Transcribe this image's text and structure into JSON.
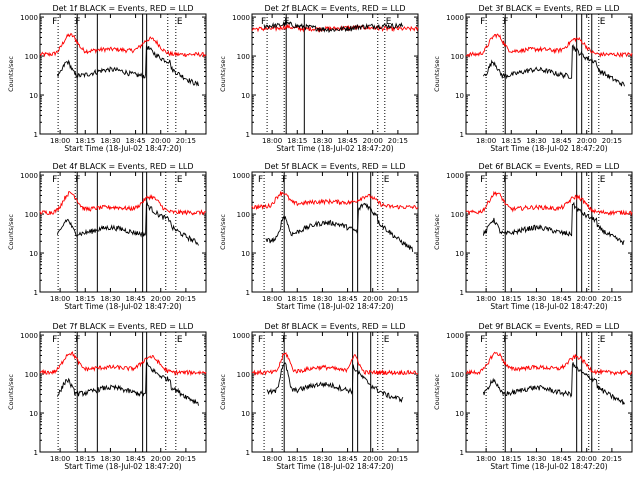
{
  "chart_data": {
    "type": "line",
    "ylabel": "Counts/sec",
    "xlabel": "Start Time (18-Jul-02 18:47:20)",
    "y_ticks": [
      "1",
      "10",
      "100",
      "1000"
    ],
    "ylim": [
      1,
      1200
    ],
    "x_ticks": [
      "18:00",
      "18:15",
      "18:30",
      "18:45",
      "20:00",
      "20:15"
    ],
    "x_tick_positions": [
      18.0,
      18.25,
      18.5,
      18.75,
      19.0,
      19.25
    ],
    "xlim": [
      17.8,
      19.45
    ],
    "marker_labels": [
      "F",
      "F",
      "E"
    ],
    "legend": [
      {
        "name": "Events",
        "color": "#000000"
      },
      {
        "name": "LLD",
        "color": "#ff0000"
      }
    ],
    "panels": [
      {
        "title": "Det 1f BLACK = Events, RED = LLD",
        "profile": "a",
        "dotted": [
          17.98,
          18.15,
          19.07,
          19.15
        ],
        "solid": [
          18.17,
          18.37,
          18.82,
          18.86
        ]
      },
      {
        "title": "Det 2f BLACK = Events, RED = LLD",
        "profile": "flat",
        "dotted": [
          17.95,
          18.12,
          19.05,
          19.12
        ],
        "solid": [
          18.14,
          18.32
        ]
      },
      {
        "title": "Det 3f BLACK = Events, RED = LLD",
        "profile": "a",
        "dotted": [
          18.0,
          18.17,
          19.02,
          19.12
        ],
        "solid": [
          18.19,
          18.9,
          18.95,
          19.05
        ]
      },
      {
        "title": "Det 4f BLACK = Events, RED = LLD",
        "profile": "a",
        "dotted": [
          17.98,
          18.15,
          19.05,
          19.15
        ],
        "solid": [
          18.17,
          18.37,
          18.82,
          18.86
        ]
      },
      {
        "title": "Det 5f BLACK = Events, RED = LLD",
        "profile": "b",
        "dotted": [
          17.92,
          18.1,
          19.05,
          19.1
        ],
        "solid": [
          18.12,
          18.8,
          18.85,
          18.98
        ]
      },
      {
        "title": "Det 6f BLACK = Events, RED = LLD",
        "profile": "a",
        "dotted": [
          18.0,
          18.17,
          19.02,
          19.12
        ],
        "solid": [
          18.19,
          18.9,
          18.95,
          19.05
        ]
      },
      {
        "title": "Det 7f BLACK = Events, RED = LLD",
        "profile": "a",
        "dotted": [
          17.98,
          18.15,
          19.05,
          19.15
        ],
        "solid": [
          18.17,
          18.37,
          18.82,
          18.86
        ]
      },
      {
        "title": "Det 8f BLACK = Events, RED = LLD",
        "profile": "c",
        "dotted": [
          17.92,
          18.1,
          19.05,
          19.1
        ],
        "solid": [
          18.12,
          18.8,
          18.85,
          18.98
        ]
      },
      {
        "title": "Det 9f BLACK = Events, RED = LLD",
        "profile": "a",
        "dotted": [
          18.0,
          18.17,
          19.02,
          19.12
        ],
        "solid": [
          18.19,
          18.9,
          18.95,
          19.05
        ]
      }
    ]
  }
}
